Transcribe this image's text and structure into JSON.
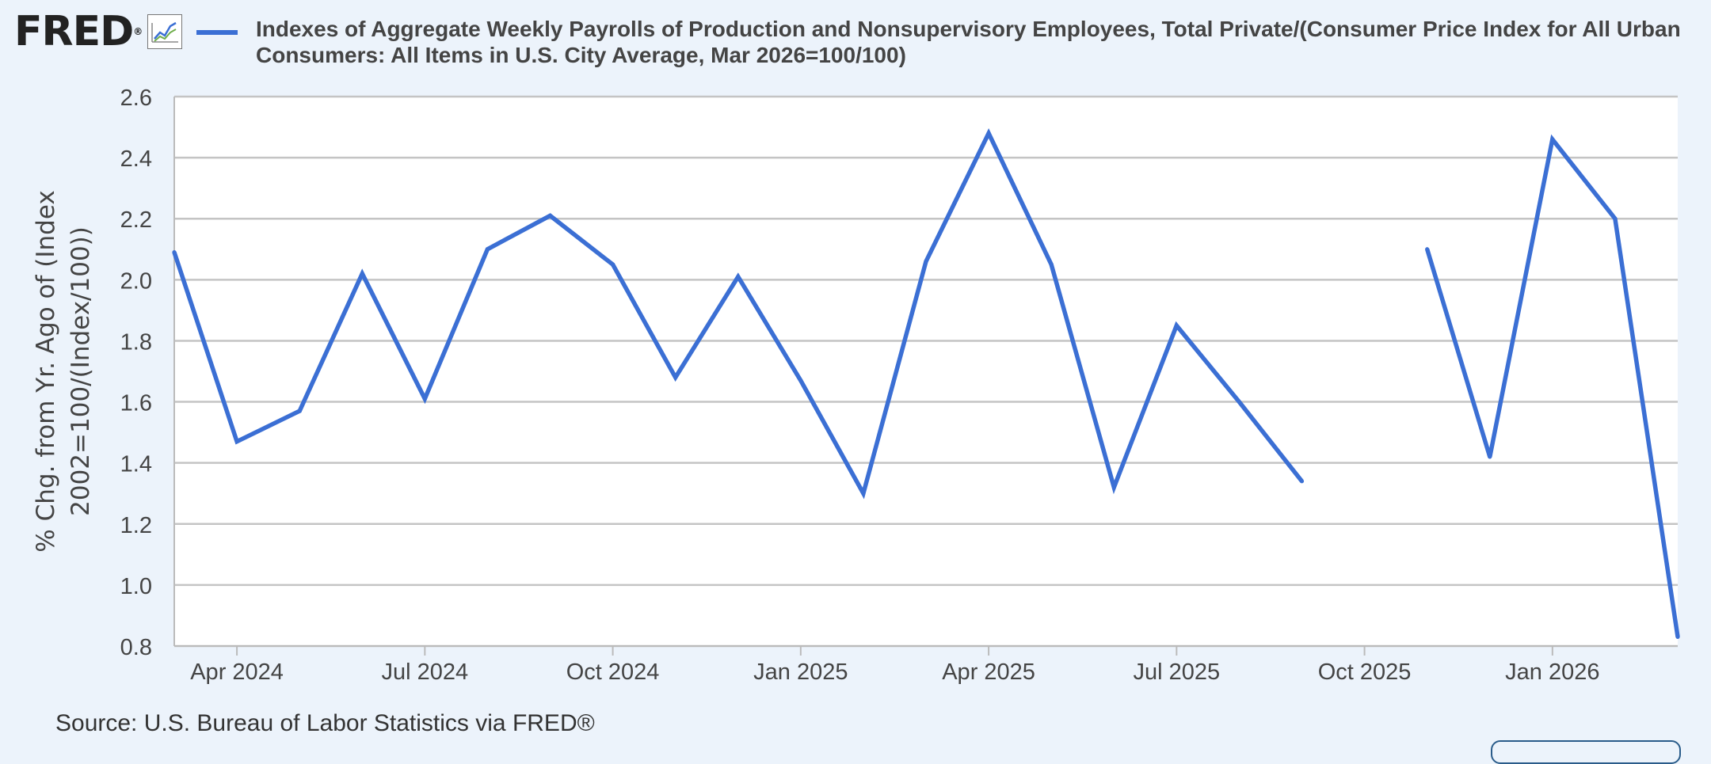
{
  "header": {
    "logo_text": "FRED",
    "logo_mark": "®",
    "legend_label": "Indexes of Aggregate Weekly Payrolls of Production and Nonsupervisory Employees, Total Private/(Consumer Price Index for All Urban Consumers: All Items in U.S. City Average, Mar 2026=100/100)"
  },
  "icons": {
    "chart_icon": "line-chart-icon"
  },
  "colors": {
    "series": "#3b6fd4",
    "background": "#ecf3fb",
    "plot_bg": "#ffffff",
    "grid": "#c4c4c4"
  },
  "source_text": "Source: U.S. Bureau of Labor Statistics via FRED®",
  "chart_data": {
    "type": "line",
    "title": "",
    "ylabel": "% Chg. from Yr. Ago of (Index 2002=100/(Index/100))",
    "xlabel": "",
    "ylim": [
      0.8,
      2.6
    ],
    "yticks": [
      "0.8",
      "1.0",
      "1.2",
      "1.4",
      "1.6",
      "1.8",
      "2.0",
      "2.2",
      "2.4",
      "2.6"
    ],
    "xlim": [
      "2024-03",
      "2026-03"
    ],
    "xticks": [
      "Apr 2024",
      "Jul 2024",
      "Oct 2024",
      "Jan 2025",
      "Apr 2025",
      "Jul 2025",
      "Oct 2025",
      "Jan 2026"
    ],
    "grid": true,
    "legend": "top",
    "series": [
      {
        "name": "Indexes of Aggregate Weekly Payrolls of Production and Nonsupervisory Employees, Total Private/(Consumer Price Index for All Urban Consumers: All Items in U.S. City Average, Mar 2026=100/100)",
        "x": [
          "2024-03",
          "2024-04",
          "2024-05",
          "2024-06",
          "2024-07",
          "2024-08",
          "2024-09",
          "2024-10",
          "2024-11",
          "2024-12",
          "2025-01",
          "2025-02",
          "2025-03",
          "2025-04",
          "2025-05",
          "2025-06",
          "2025-07",
          "2025-08",
          "2025-09",
          "2025-10",
          "2025-11",
          "2025-12",
          "2026-01",
          "2026-02",
          "2026-03"
        ],
        "values": [
          2.09,
          1.47,
          1.57,
          2.02,
          1.61,
          2.1,
          2.21,
          2.05,
          1.68,
          2.01,
          1.67,
          1.3,
          2.06,
          2.48,
          2.05,
          1.32,
          1.85,
          1.6,
          1.34,
          null,
          2.1,
          1.42,
          2.46,
          2.2,
          0.83
        ]
      }
    ]
  }
}
